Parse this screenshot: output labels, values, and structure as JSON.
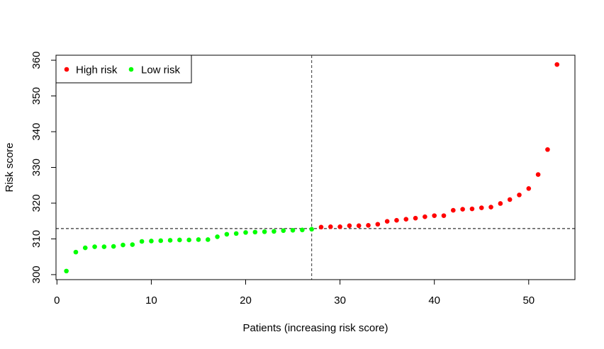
{
  "chart_data": {
    "type": "scatter",
    "title": "",
    "xlabel": "Patients (increasing risk score)",
    "ylabel": "Risk score",
    "xlim": [
      -0.1,
      54.9
    ],
    "ylim": [
      298.6,
      361.4
    ],
    "xticks": [
      0,
      10,
      20,
      30,
      40,
      50
    ],
    "yticks": [
      300,
      310,
      320,
      330,
      340,
      350,
      360
    ],
    "cutoff_x": 27,
    "cutoff_y": 312.9,
    "grid": false,
    "legend": {
      "placement": "top-left",
      "entries": [
        "High risk",
        "Low risk"
      ]
    },
    "series": [
      {
        "name": "Low risk",
        "color": "#00ff00",
        "x": [
          1,
          2,
          3,
          4,
          5,
          6,
          7,
          8,
          9,
          10,
          11,
          12,
          13,
          14,
          15,
          16,
          17,
          18,
          19,
          20,
          21,
          22,
          23,
          24,
          25,
          26,
          27
        ],
        "y": [
          301.0,
          306.3,
          307.5,
          307.8,
          307.8,
          307.9,
          308.3,
          308.4,
          309.3,
          309.4,
          309.5,
          309.6,
          309.7,
          309.7,
          309.8,
          309.8,
          310.6,
          311.3,
          311.5,
          311.8,
          311.9,
          312.0,
          312.1,
          312.3,
          312.4,
          312.5,
          312.7
        ]
      },
      {
        "name": "High risk",
        "color": "#ff0000",
        "x": [
          28,
          29,
          30,
          31,
          32,
          33,
          34,
          35,
          36,
          37,
          38,
          39,
          40,
          41,
          42,
          43,
          44,
          45,
          46,
          47,
          48,
          49,
          50,
          51,
          52,
          53
        ],
        "y": [
          313.3,
          313.4,
          313.4,
          313.7,
          313.7,
          313.8,
          314.1,
          314.9,
          315.2,
          315.5,
          315.8,
          316.2,
          316.5,
          316.5,
          318.0,
          318.3,
          318.4,
          318.7,
          318.9,
          319.9,
          321.0,
          322.3,
          324.1,
          328.0,
          335.0,
          358.8
        ]
      }
    ]
  }
}
